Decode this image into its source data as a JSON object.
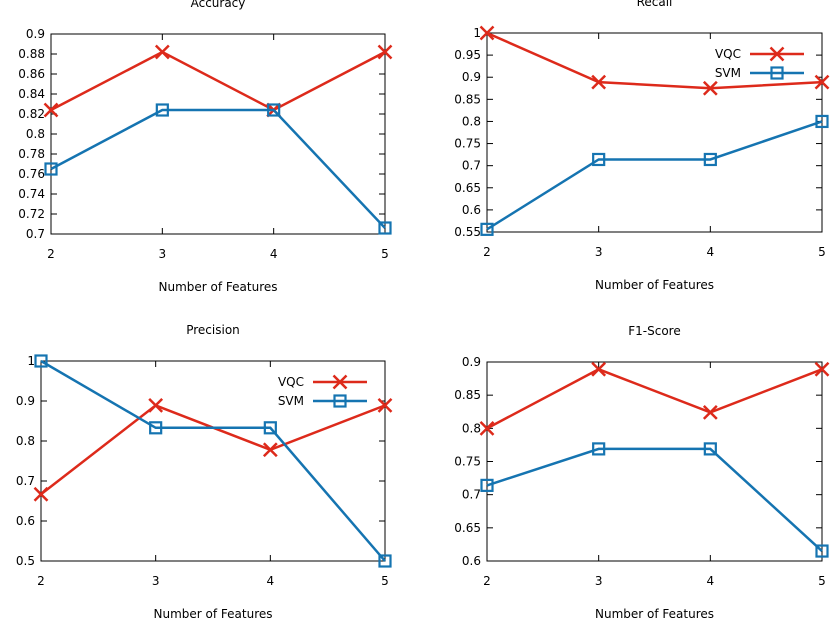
{
  "colors": {
    "vqc": "#dd2a1b",
    "svm": "#1574b1",
    "axis": "#000000"
  },
  "chart_data": [
    {
      "type": "line",
      "title": "Accuracy",
      "xlabel": "Number of Features",
      "ylabel": "",
      "x": [
        2,
        3,
        4,
        5
      ],
      "xticks": [
        "2",
        "3",
        "4",
        "5"
      ],
      "ylim": [
        0.7,
        0.9
      ],
      "yticks": [
        "0.7",
        "0.72",
        "0.74",
        "0.76",
        "0.78",
        "0.8",
        "0.82",
        "0.84",
        "0.86",
        "0.88",
        "0.9"
      ],
      "legend": "none",
      "grid": false,
      "series": [
        {
          "key": "vqc",
          "marker": "x",
          "values": [
            0.824,
            0.882,
            0.824,
            0.882
          ]
        },
        {
          "key": "svm",
          "marker": "square",
          "values": [
            0.765,
            0.824,
            0.824,
            0.706
          ]
        }
      ]
    },
    {
      "type": "line",
      "title": "Recall",
      "xlabel": "Number of Features",
      "ylabel": "",
      "x": [
        2,
        3,
        4,
        5
      ],
      "xticks": [
        "2",
        "3",
        "4",
        "5"
      ],
      "ylim": [
        0.55,
        1.0
      ],
      "yticks": [
        "0.55",
        "0.6",
        "0.65",
        "0.7",
        "0.75",
        "0.8",
        "0.85",
        "0.9",
        "0.95",
        "1"
      ],
      "legend": "top-right",
      "grid": false,
      "series": [
        {
          "key": "vqc",
          "name": "VQC",
          "marker": "x",
          "values": [
            1.0,
            0.889,
            0.875,
            0.889
          ]
        },
        {
          "key": "svm",
          "name": "SVM",
          "marker": "square",
          "values": [
            0.556,
            0.714,
            0.714,
            0.8
          ]
        }
      ]
    },
    {
      "type": "line",
      "title": "Precision",
      "xlabel": "Number of Features",
      "ylabel": "",
      "x": [
        2,
        3,
        4,
        5
      ],
      "xticks": [
        "2",
        "3",
        "4",
        "5"
      ],
      "ylim": [
        0.5,
        1.0
      ],
      "yticks": [
        "0.5",
        "0.6",
        "0.7",
        "0.8",
        "0.9",
        "1"
      ],
      "legend": "top-right",
      "grid": false,
      "series": [
        {
          "key": "vqc",
          "name": "VQC",
          "marker": "x",
          "values": [
            0.667,
            0.889,
            0.778,
            0.889
          ]
        },
        {
          "key": "svm",
          "name": "SVM",
          "marker": "square",
          "values": [
            1.0,
            0.833,
            0.833,
            0.5
          ]
        }
      ]
    },
    {
      "type": "line",
      "title": "F1-Score",
      "xlabel": "Number of Features",
      "ylabel": "",
      "x": [
        2,
        3,
        4,
        5
      ],
      "xticks": [
        "2",
        "3",
        "4",
        "5"
      ],
      "ylim": [
        0.6,
        0.9
      ],
      "yticks": [
        "0.6",
        "0.65",
        "0.7",
        "0.75",
        "0.8",
        "0.85",
        "0.9"
      ],
      "legend": "none",
      "grid": false,
      "series": [
        {
          "key": "vqc",
          "marker": "x",
          "values": [
            0.8,
            0.889,
            0.824,
            0.889
          ]
        },
        {
          "key": "svm",
          "marker": "square",
          "values": [
            0.714,
            0.769,
            0.769,
            0.615
          ]
        }
      ]
    }
  ]
}
